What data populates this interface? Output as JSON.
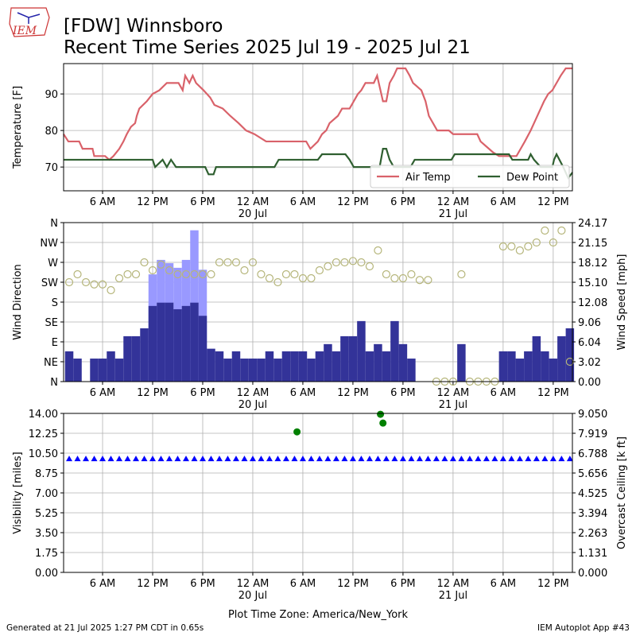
{
  "header": {
    "logo": "IEM",
    "title": "[FDW] Winnsboro",
    "subtitle": "Recent Time Series 2025 Jul 19 - 2025 Jul 21"
  },
  "footer": {
    "left": "Generated at 21 Jul 2025 1:27 PM CDT in 0.65s",
    "right": "IEM Autoplot App #43"
  },
  "chart_data": [
    {
      "type": "line",
      "ylabel": "Temperature [F]",
      "grid": true,
      "legend": "lower right",
      "xlim": [
        1.33,
        62.3
      ],
      "ylim": [
        63.5,
        98.3
      ],
      "yticks": [
        70,
        80,
        90
      ],
      "xticks": [
        {
          "value": 6,
          "label": "6 AM"
        },
        {
          "value": 12,
          "label": "12 PM"
        },
        {
          "value": 18,
          "label": "6 PM"
        },
        {
          "value": 24,
          "label": "12 AM\n20 Jul"
        },
        {
          "value": 30,
          "label": "6 AM"
        },
        {
          "value": 36,
          "label": "12 PM"
        },
        {
          "value": 42,
          "label": "6 PM"
        },
        {
          "value": 48,
          "label": "12 AM\n21 Jul"
        },
        {
          "value": 54,
          "label": "6 AM"
        },
        {
          "value": 60,
          "label": "12 PM"
        }
      ],
      "series": [
        {
          "name": "Air Temp",
          "color": "#d9626a",
          "x": [
            1.33,
            1.9,
            3.2,
            3.6,
            4.8,
            5.0,
            6.3,
            6.8,
            7.3,
            8.0,
            8.5,
            8.9,
            9.4,
            9.9,
            10.1,
            10.4,
            11.3,
            12.0,
            12.8,
            13.7,
            15.1,
            15.6,
            15.9,
            16.4,
            16.8,
            17.2,
            18.1,
            18.9,
            19.4,
            20.4,
            21.3,
            22.3,
            23.2,
            24.2,
            25.6,
            30.4,
            30.9,
            31.8,
            32.3,
            32.8,
            33.2,
            34.2,
            34.7,
            35.6,
            36.1,
            36.6,
            37.0,
            37.5,
            38.5,
            38.9,
            39.2,
            39.6,
            40.0,
            40.4,
            40.9,
            41.3,
            42.3,
            42.8,
            43.2,
            44.2,
            44.7,
            45.1,
            45.6,
            46.1,
            47.5,
            48.0,
            50.9,
            51.3,
            52.3,
            52.8,
            53.5,
            55.6,
            56.1,
            56.6,
            57.3,
            57.7,
            58.5,
            58.9,
            59.4,
            59.9,
            60.4,
            60.9,
            61.5,
            62.3
          ],
          "values": [
            79,
            77,
            77,
            75,
            75,
            73,
            73,
            72,
            73,
            75,
            77,
            79,
            81,
            82,
            84,
            86,
            88,
            90,
            91,
            93,
            93,
            91,
            95,
            93,
            95,
            93,
            91,
            89,
            87,
            86,
            84,
            82,
            80,
            79,
            77,
            77,
            75,
            77,
            79,
            80,
            82,
            84,
            86,
            86,
            88,
            90,
            91,
            93,
            93,
            95,
            92,
            88,
            88,
            93,
            95,
            97,
            97,
            95,
            93,
            91,
            88,
            84,
            82,
            80,
            80,
            79,
            79,
            77,
            75,
            74,
            73,
            73,
            75,
            77,
            80,
            82,
            86,
            88,
            90,
            91,
            93,
            95,
            97,
            97
          ]
        },
        {
          "name": "Dew Point",
          "color": "#2f5f30",
          "x": [
            1.33,
            12.0,
            12.3,
            13.2,
            13.7,
            14.2,
            14.8,
            18.3,
            18.7,
            19.3,
            19.6,
            26.6,
            27.1,
            31.8,
            32.3,
            35.1,
            35.6,
            36.1,
            39.2,
            39.6,
            40.0,
            40.4,
            40.9,
            42.9,
            43.4,
            47.8,
            48.2,
            54.7,
            55.1,
            57.0,
            57.3,
            57.7,
            58.5,
            59.9,
            60.1,
            60.4,
            61.2,
            61.8,
            62.3
          ],
          "values": [
            72,
            72,
            70,
            72,
            70,
            72,
            70,
            70,
            68,
            68,
            70,
            70,
            72,
            72,
            73.5,
            73.5,
            72,
            70,
            70,
            75,
            75,
            72,
            70,
            70,
            72,
            72,
            73.5,
            73.5,
            72,
            72,
            73.5,
            72,
            70,
            70,
            72,
            73.5,
            70,
            67,
            68.5
          ]
        }
      ]
    },
    {
      "type": "bar",
      "ylabel": "Wind Direction",
      "y2label": "Wind Speed [mph]",
      "grid": true,
      "xlim": [
        1.33,
        62.3
      ],
      "ylim": [
        0,
        360
      ],
      "y2lim": [
        0,
        24.17
      ],
      "yticks": [
        {
          "value": 0,
          "label": "N"
        },
        {
          "value": 45,
          "label": "NE"
        },
        {
          "value": 90,
          "label": "E"
        },
        {
          "value": 135,
          "label": "SE"
        },
        {
          "value": 180,
          "label": "S"
        },
        {
          "value": 225,
          "label": "SW"
        },
        {
          "value": 270,
          "label": "W"
        },
        {
          "value": 315,
          "label": "NW"
        },
        {
          "value": 360,
          "label": "N"
        }
      ],
      "y2ticks": [
        {
          "value": 0,
          "label": "0.00"
        },
        3.02,
        6.04,
        9.06,
        12.08,
        {
          "value": 15.1,
          "label": "15.10"
        },
        18.12,
        21.15,
        24.17
      ],
      "xticks": [
        {
          "value": 6,
          "label": "6 AM"
        },
        {
          "value": 12,
          "label": "12 PM"
        },
        {
          "value": 18,
          "label": "6 PM"
        },
        {
          "value": 24,
          "label": "12 AM\n20 Jul"
        },
        {
          "value": 30,
          "label": "6 AM"
        },
        {
          "value": 36,
          "label": "12 PM"
        },
        {
          "value": 42,
          "label": "6 PM"
        },
        {
          "value": 48,
          "label": "12 AM\n21 Jul"
        },
        {
          "value": 54,
          "label": "6 AM"
        },
        {
          "value": 60,
          "label": "12 PM"
        }
      ],
      "series": [
        {
          "kind": "bar",
          "axis": "y2",
          "color": "#9999ff",
          "x": [
            2,
            3,
            4,
            5,
            6,
            7,
            8,
            9,
            10,
            11,
            12,
            13,
            14,
            15,
            16,
            17,
            18,
            19,
            20,
            21,
            22,
            23,
            24,
            25,
            26,
            27,
            28,
            29,
            30,
            31,
            32,
            33,
            34,
            35,
            36,
            37,
            38,
            39,
            40,
            41,
            42,
            43,
            44,
            45,
            46,
            47,
            48,
            49,
            50,
            51,
            52,
            53,
            54,
            55,
            56,
            57,
            58,
            59,
            60,
            61,
            62
          ],
          "values": [
            null,
            null,
            null,
            null,
            null,
            null,
            null,
            null,
            null,
            null,
            16.3,
            18.5,
            18,
            17.3,
            18.5,
            23,
            17,
            null,
            null,
            null,
            null,
            null,
            null,
            null,
            null,
            null,
            null,
            null,
            null,
            null,
            null,
            null,
            null,
            null,
            null,
            null,
            null,
            null,
            null,
            null,
            null,
            null,
            null,
            null,
            null,
            null,
            null,
            null,
            null,
            null,
            null,
            null,
            null,
            null,
            null,
            null,
            null,
            null,
            null,
            null,
            null
          ]
        },
        {
          "kind": "bar",
          "axis": "y2",
          "color": "#333399",
          "x": [
            2,
            3,
            4,
            5,
            6,
            7,
            8,
            9,
            10,
            11,
            12,
            13,
            14,
            15,
            16,
            17,
            18,
            19,
            20,
            21,
            22,
            23,
            24,
            25,
            26,
            27,
            28,
            29,
            30,
            31,
            32,
            33,
            34,
            35,
            36,
            37,
            38,
            39,
            40,
            41,
            42,
            43,
            44,
            45,
            46,
            47,
            48,
            49,
            50,
            51,
            52,
            53,
            54,
            55,
            56,
            57,
            58,
            59,
            60,
            61,
            62
          ],
          "values": [
            4.6,
            3.5,
            0,
            3.5,
            3.5,
            4.6,
            3.5,
            6.9,
            6.9,
            8.1,
            11.5,
            12,
            12,
            11,
            11.5,
            12,
            10,
            5,
            4.6,
            3.5,
            4.6,
            3.5,
            3.5,
            3.5,
            4.6,
            3.5,
            4.6,
            4.6,
            4.6,
            3.5,
            4.6,
            5.7,
            4.6,
            6.9,
            6.9,
            9.2,
            4.6,
            5.7,
            4.6,
            9.2,
            5.7,
            3.5,
            0,
            0,
            0,
            0,
            0,
            5.7,
            0,
            0,
            0,
            0,
            4.6,
            4.6,
            3.5,
            4.6,
            6.9,
            4.6,
            3.5,
            6.9,
            8.1
          ]
        },
        {
          "kind": "circle",
          "color": "#b5b57a",
          "x": [
            2,
            3,
            4,
            5,
            6,
            7,
            8,
            9,
            10,
            11,
            12,
            13,
            14,
            15,
            16,
            17,
            18,
            19,
            20,
            21,
            22,
            23,
            24,
            25,
            26,
            27,
            28,
            29,
            30,
            31,
            32,
            33,
            34,
            35,
            36,
            37,
            38,
            39,
            40,
            41,
            42,
            43,
            44,
            45,
            46,
            47,
            48,
            49,
            50,
            51,
            52,
            53,
            54,
            55,
            56,
            57,
            58,
            59,
            60,
            61,
            62
          ],
          "values": [
            225,
            243,
            225,
            220,
            220,
            207,
            234,
            243,
            243,
            270,
            252,
            265,
            252,
            243,
            243,
            243,
            243,
            243,
            270,
            270,
            270,
            252,
            270,
            243,
            234,
            225,
            243,
            243,
            234,
            234,
            252,
            261,
            270,
            270,
            273,
            270,
            261,
            297,
            243,
            234,
            234,
            243,
            230,
            230,
            0,
            0,
            0,
            243,
            0,
            0,
            0,
            0,
            306,
            306,
            297,
            306,
            315,
            342,
            315,
            342,
            45
          ]
        }
      ]
    },
    {
      "type": "scatter",
      "ylabel": "Visibility [miles]",
      "y2label": "Overcast Ceiling [k ft]",
      "y2color": "#008000",
      "grid": true,
      "xlabel": "Plot Time Zone: America/New_York",
      "xlim": [
        1.33,
        62.3
      ],
      "ylim": [
        0,
        14
      ],
      "y2lim": [
        0,
        9.05
      ],
      "yticks": [
        {
          "value": 0,
          "label": "0.00"
        },
        1.75,
        {
          "value": 3.5,
          "label": "3.50"
        },
        5.25,
        {
          "value": 7,
          "label": "7.00"
        },
        8.75,
        {
          "value": 10.5,
          "label": "10.50"
        },
        12.25,
        {
          "value": 14,
          "label": "14.00"
        }
      ],
      "y2ticks": [
        {
          "value": 0,
          "label": "0.000"
        },
        1.131,
        2.263,
        3.394,
        {
          "value": 4.525,
          "label": "4.525"
        },
        5.656,
        6.788,
        7.919,
        {
          "value": 9.05,
          "label": "9.050"
        }
      ],
      "xticks": [
        {
          "value": 6,
          "label": "6 AM"
        },
        {
          "value": 12,
          "label": "12 PM"
        },
        {
          "value": 18,
          "label": "6 PM"
        },
        {
          "value": 24,
          "label": "12 AM\n20 Jul"
        },
        {
          "value": 30,
          "label": "6 AM"
        },
        {
          "value": 36,
          "label": "12 PM"
        },
        {
          "value": 42,
          "label": "6 PM"
        },
        {
          "value": 48,
          "label": "12 AM\n21 Jul"
        },
        {
          "value": 54,
          "label": "6 AM"
        },
        {
          "value": 60,
          "label": "12 PM"
        }
      ],
      "series": [
        {
          "kind": "triangle",
          "color": "#0000ff",
          "x": [
            2,
            3,
            4,
            5,
            6,
            7,
            8,
            9,
            10,
            11,
            12,
            13,
            14,
            15,
            16,
            17,
            18,
            19,
            20,
            21,
            22,
            23,
            24,
            25,
            26,
            27,
            28,
            29,
            30,
            31,
            32,
            33,
            34,
            35,
            36,
            37,
            38,
            39,
            40,
            41,
            42,
            43,
            44,
            45,
            46,
            47,
            48,
            49,
            50,
            51,
            52,
            53,
            54,
            55,
            56,
            57,
            58,
            59,
            60,
            61,
            62
          ],
          "values": [
            10,
            10,
            10,
            10,
            10,
            10,
            10,
            10,
            10,
            10,
            10,
            10,
            10,
            10,
            10,
            10,
            10,
            10,
            10,
            10,
            10,
            10,
            10,
            10,
            10,
            10,
            10,
            10,
            10,
            10,
            10,
            10,
            10,
            10,
            10,
            10,
            10,
            10,
            10,
            10,
            10,
            10,
            10,
            10,
            10,
            10,
            10,
            10,
            10,
            10,
            10,
            10,
            10,
            10,
            10,
            10,
            10,
            10,
            10,
            10,
            10
          ]
        },
        {
          "kind": "dot",
          "axis": "y2",
          "color": "#008000",
          "x": [
            29.3,
            39.3,
            39.6
          ],
          "values": [
            8.0,
            9.0,
            8.5
          ]
        }
      ]
    }
  ]
}
